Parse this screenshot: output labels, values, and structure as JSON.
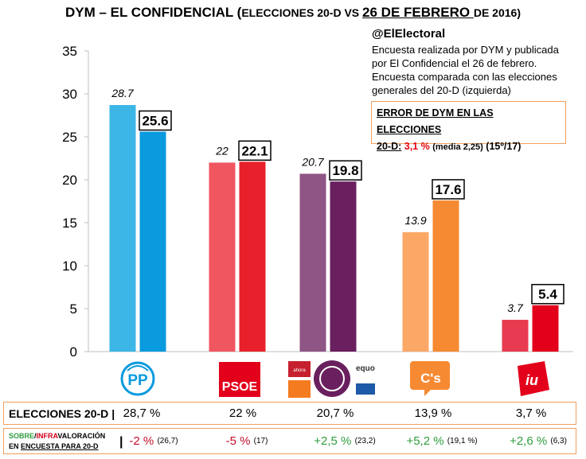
{
  "title": {
    "part1": "DYM – EL CONFIDENCIAL (",
    "part2": "ELECCIONES 20-D VS ",
    "part3": "26 DE FEBRERO ",
    "part4": "DE 2016)"
  },
  "info": {
    "handle": "@ElElectoral",
    "lines": [
      "Encuesta realizada por DYM y publicada",
      "por El Confidencial el 26 de febrero.",
      "Encuesta comparada con las elecciones",
      "generales del 20-D (izquierda)"
    ]
  },
  "error_box": {
    "line1": "ERROR DE DYM EN LAS ELECCIONES",
    "line2_a": "20-D:",
    "line2_b": "3,1 %",
    "line2_c": "(media 2,25)",
    "line2_d": "(15º/17)"
  },
  "chart_data": {
    "type": "bar",
    "categories": [
      "PP",
      "PSOE",
      "Podemos",
      "C's",
      "IU"
    ],
    "ylim": [
      0,
      35
    ],
    "yticks": [
      0,
      5,
      10,
      15,
      20,
      25,
      30,
      35
    ],
    "series": [
      {
        "name": "Elecciones 20-D",
        "values": [
          28.7,
          22,
          20.7,
          13.9,
          3.7
        ],
        "labels": [
          "28.7",
          "22",
          "20.7",
          "13.9",
          "3.7"
        ]
      },
      {
        "name": "Encuesta 26 de febrero",
        "values": [
          25.6,
          22.1,
          19.8,
          17.6,
          5.4
        ],
        "labels": [
          "25.6",
          "22.1",
          "19.8",
          "17.6",
          "5.4"
        ]
      }
    ],
    "colors": {
      "election": [
        "#3bb6e6",
        "#f05660",
        "#8e5585",
        "#fba765",
        "#e83a50"
      ],
      "poll": [
        "#0a9ade",
        "#e8202b",
        "#6a1f5e",
        "#f68a32",
        "#e3001b"
      ]
    },
    "grid": false
  },
  "logos": {
    "pp": "PP",
    "psoe": "PSOE",
    "equo": "equo",
    "cs": "C's",
    "iu": "iu"
  },
  "table": {
    "row1_label": "ELECCIONES 20-D",
    "row1_values": [
      "28,7 %",
      "22 %",
      "20,7 %",
      "13,9 %",
      "3,7 %"
    ],
    "row2_label": {
      "sobre": "SOBRE",
      "slash": "/",
      "infra": "INFRA",
      "valoracion": "VALORACIÓN",
      "en": "EN ",
      "encuesta": "ENCUESTA PARA 20-D"
    },
    "row2_values": [
      {
        "value": "-2 %",
        "ref": "(26,7)"
      },
      {
        "value": "-5 %",
        "ref": "(17)"
      },
      {
        "value": "+2,5 %",
        "ref": "(23,2)"
      },
      {
        "value": "+5,2 %",
        "ref": "(19,1 %)"
      },
      {
        "value": "+2,6 %",
        "ref": "(6,3)"
      }
    ]
  }
}
